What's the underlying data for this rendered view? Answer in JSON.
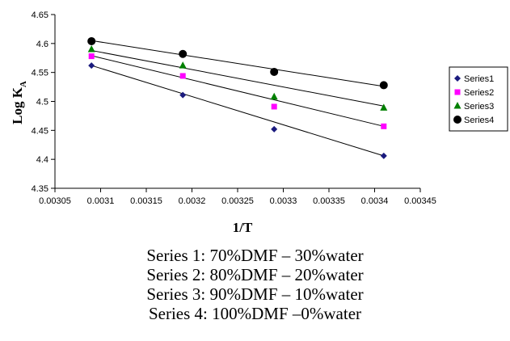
{
  "chart_data": {
    "type": "scatter",
    "title": "",
    "xlabel": "1/T",
    "ylabel_main": "Log K",
    "ylabel_sub": "A",
    "xlim": [
      0.00305,
      0.00345
    ],
    "ylim": [
      4.35,
      4.65
    ],
    "x_ticks": [
      "0.00305",
      "0.0031",
      "0.00315",
      "0.0032",
      "0.00325",
      "0.0033",
      "0.00335",
      "0.0034",
      "0.00345"
    ],
    "y_ticks": [
      "4.35",
      "4.4",
      "4.45",
      "4.5",
      "4.55",
      "4.6",
      "4.65"
    ],
    "grid": false,
    "legend_position": "right",
    "series": [
      {
        "name": "Series1",
        "marker": "diamond",
        "color": "#1a1a7e",
        "x": [
          0.00309,
          0.00319,
          0.00329,
          0.00341
        ],
        "y": [
          4.562,
          4.511,
          4.452,
          4.406
        ],
        "trendline": [
          [
            0.00309,
            4.562
          ],
          [
            0.00341,
            4.406
          ]
        ]
      },
      {
        "name": "Series2",
        "marker": "square",
        "color": "#ff00ff",
        "x": [
          0.00309,
          0.00319,
          0.00329,
          0.00341
        ],
        "y": [
          4.578,
          4.544,
          4.491,
          4.457
        ],
        "trendline": [
          [
            0.00309,
            4.579
          ],
          [
            0.00341,
            4.457
          ]
        ]
      },
      {
        "name": "Series3",
        "marker": "triangle",
        "color": "#008000",
        "x": [
          0.00309,
          0.00319,
          0.00329,
          0.00341
        ],
        "y": [
          4.59,
          4.562,
          4.508,
          4.489
        ],
        "trendline": [
          [
            0.00309,
            4.588
          ],
          [
            0.00341,
            4.492
          ]
        ]
      },
      {
        "name": "Series4",
        "marker": "circle",
        "color": "#000000",
        "x": [
          0.00309,
          0.00319,
          0.00329,
          0.00341
        ],
        "y": [
          4.604,
          4.582,
          4.551,
          4.528
        ],
        "trendline": [
          [
            0.00309,
            4.605
          ],
          [
            0.00341,
            4.526
          ]
        ]
      }
    ]
  },
  "captions": [
    "Series 1: 70%DMF – 30%water",
    "Series 2: 80%DMF – 20%water",
    "Series 3: 90%DMF – 10%water",
    "Series 4: 100%DMF –0%water"
  ]
}
